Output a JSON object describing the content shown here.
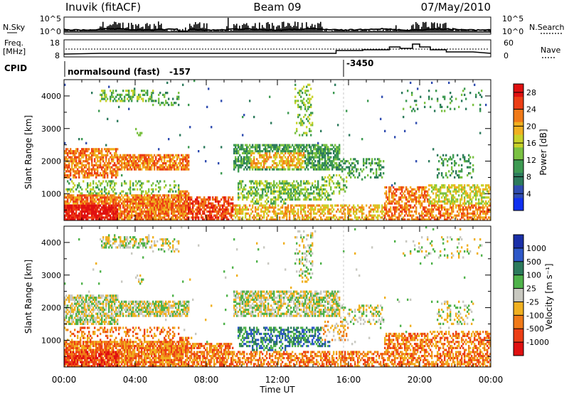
{
  "header": {
    "station": "Inuvik (fitACF)",
    "beam": "Beam 09",
    "date": "07/May/2010"
  },
  "top_panels": {
    "nsky_label": "N.Sky",
    "nsearch_label": "N.Search",
    "freq_label_1": "Freq.",
    "freq_label_2": "[MHz]",
    "nave_label": "Nave",
    "cpid_label": "CPID",
    "nsky_ticks": [
      "10^5",
      "10^0"
    ],
    "nsearch_ticks": [
      "10^5",
      "10^0"
    ],
    "freq_ticks": [
      "18",
      "8"
    ],
    "nave_ticks": [
      "60",
      "0"
    ],
    "cpid_segments": [
      {
        "name": "normalsound (fast)",
        "id": "-157"
      },
      {
        "id": "-3450"
      }
    ]
  },
  "chart_data": [
    {
      "type": "heatmap",
      "quantity": "power",
      "xlabel": "Time UT",
      "ylabel": "Slant Range [km]",
      "x_ticks": [
        "00:00",
        "04:00",
        "08:00",
        "12:00",
        "16:00",
        "20:00",
        "00:00"
      ],
      "xlim_hours": [
        0,
        24
      ],
      "y_ticks": [
        1000,
        2000,
        3000,
        4000
      ],
      "ylim_km": [
        180,
        4500
      ],
      "colorbar": {
        "label": "Power [dB]",
        "ticks": [
          4,
          8,
          12,
          16,
          20,
          24,
          28
        ],
        "range": [
          0,
          30
        ],
        "colors": [
          "#1030f0",
          "#2f4cb0",
          "#2c7a5c",
          "#3d9a52",
          "#7ac142",
          "#c8d22a",
          "#f0b020",
          "#f07a18",
          "#ec3e15",
          "#e01010"
        ]
      }
    },
    {
      "type": "heatmap",
      "quantity": "velocity",
      "xlabel": "Time UT",
      "ylabel": "Slant Range [km]",
      "x_ticks": [
        "00:00",
        "04:00",
        "08:00",
        "12:00",
        "16:00",
        "20:00",
        "00:00"
      ],
      "xlim_hours": [
        0,
        24
      ],
      "y_ticks": [
        1000,
        2000,
        3000,
        4000
      ],
      "ylim_km": [
        180,
        4500
      ],
      "colorbar": {
        "label": "Velocity [m s⁻¹]",
        "ticks": [
          "1000",
          "500",
          "100",
          "25",
          "-25",
          "-100",
          "-500",
          "-1000"
        ],
        "colors": [
          "#1a2fa8",
          "#2e58c8",
          "#2c7a5c",
          "#4fb24a",
          "#c8c8c0",
          "#f0b020",
          "#f07a18",
          "#ec3e15",
          "#e01010"
        ]
      }
    }
  ]
}
